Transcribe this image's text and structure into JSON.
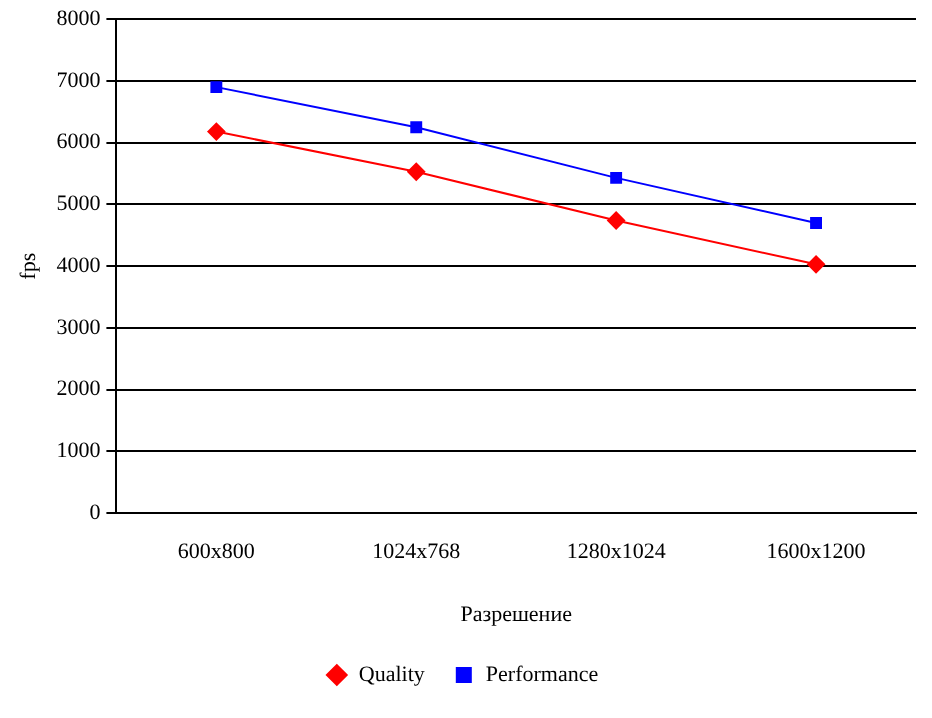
{
  "chart_data": {
    "type": "line",
    "xlabel": "Разрешение",
    "ylabel": "fps",
    "categories": [
      "600x800",
      "1024x768",
      "1280x1024",
      "1600x1200"
    ],
    "series": [
      {
        "name": "Quality",
        "color": "#ff0000",
        "values": [
          6180,
          5530,
          4740,
          4030
        ],
        "marker": "diamond"
      },
      {
        "name": "Performance",
        "color": "#0000ff",
        "values": [
          6900,
          6250,
          5430,
          4700
        ],
        "marker": "square"
      }
    ],
    "ylim": [
      0,
      8000
    ],
    "yticks": [
      0,
      1000,
      2000,
      3000,
      4000,
      5000,
      6000,
      7000,
      8000
    ],
    "grid": "y",
    "legend": "bottom"
  }
}
